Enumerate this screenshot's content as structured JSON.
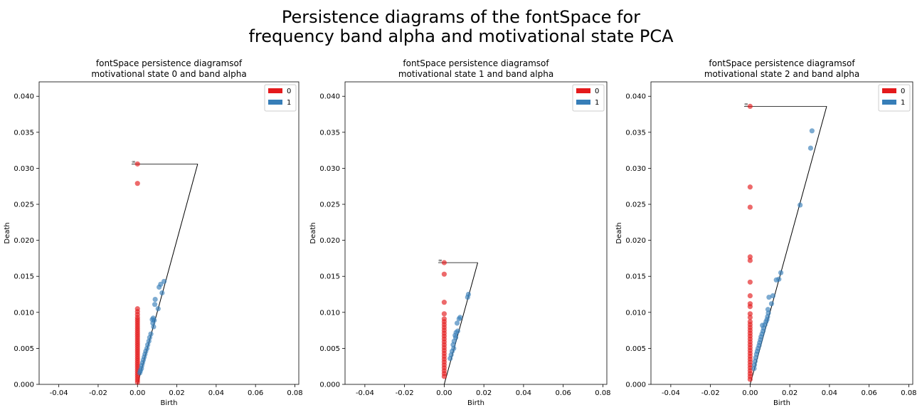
{
  "figure": {
    "title_line1": "Persistence diagrams of the fontSpace for",
    "title_line2": "frequency band alpha and motivational state PCA"
  },
  "chart_data": [
    {
      "type": "scatter",
      "title_line1": "fontSpace persistence diagramsof",
      "title_line2": "motivational state 0 and band alpha",
      "xlabel": "Birth",
      "ylabel": "Death",
      "xlim": [
        -0.05,
        0.082
      ],
      "ylim": [
        0,
        0.042
      ],
      "xticks": [
        "-0.04",
        "-0.02",
        "0.00",
        "0.02",
        "0.04",
        "0.06",
        "0.08"
      ],
      "yticks": [
        "0.000",
        "0.005",
        "0.010",
        "0.015",
        "0.020",
        "0.025",
        "0.030",
        "0.035",
        "0.040"
      ],
      "legend": {
        "position": "top-right",
        "entries": [
          {
            "label": "0",
            "color": "#e41a1c"
          },
          {
            "label": "1",
            "color": "#377eb8"
          }
        ]
      },
      "infinity_label": "∞",
      "infinity_level": 0.0306,
      "diagonal_max": 0.0306,
      "series": [
        {
          "name": "0",
          "color": "#e41a1c",
          "points": [
            [
              0,
              0.0306
            ],
            [
              0,
              0.0279
            ],
            [
              0,
              0.0105
            ],
            [
              0,
              0.0101
            ],
            [
              0,
              0.0097
            ],
            [
              0,
              0.0093
            ],
            [
              0,
              0.009
            ],
            [
              0,
              0.0087
            ],
            [
              0,
              0.0084
            ],
            [
              0,
              0.0081
            ],
            [
              0,
              0.0078
            ],
            [
              0,
              0.0075
            ],
            [
              0,
              0.0072
            ],
            [
              0,
              0.0069
            ],
            [
              0,
              0.0066
            ],
            [
              0,
              0.0063
            ],
            [
              0,
              0.006
            ],
            [
              0,
              0.0057
            ],
            [
              0,
              0.0054
            ],
            [
              0,
              0.0051
            ],
            [
              0,
              0.0048
            ],
            [
              0,
              0.0045
            ],
            [
              0,
              0.0042
            ],
            [
              0,
              0.0039
            ],
            [
              0,
              0.0036
            ],
            [
              0,
              0.0033
            ],
            [
              0,
              0.003
            ],
            [
              0,
              0.0027
            ],
            [
              0,
              0.0024
            ],
            [
              0,
              0.0021
            ],
            [
              0,
              0.0018
            ],
            [
              0,
              0.0015
            ],
            [
              0,
              0.0012
            ],
            [
              0,
              0.0009
            ],
            [
              0,
              0.0006
            ],
            [
              0,
              0.0003
            ]
          ]
        },
        {
          "name": "1",
          "color": "#377eb8",
          "points": [
            [
              0.0135,
              0.0143
            ],
            [
              0.0118,
              0.0139
            ],
            [
              0.011,
              0.0135
            ],
            [
              0.0125,
              0.0127
            ],
            [
              0.009,
              0.0118
            ],
            [
              0.0088,
              0.0111
            ],
            [
              0.0105,
              0.0105
            ],
            [
              0.008,
              0.0092
            ],
            [
              0.0075,
              0.009
            ],
            [
              0.0085,
              0.0089
            ],
            [
              0.0078,
              0.0085
            ],
            [
              0.0082,
              0.008
            ],
            [
              0.0068,
              0.007
            ],
            [
              0.0062,
              0.0065
            ],
            [
              0.0058,
              0.006
            ],
            [
              0.0052,
              0.0055
            ],
            [
              0.0048,
              0.005
            ],
            [
              0.0042,
              0.0046
            ],
            [
              0.0038,
              0.0042
            ],
            [
              0.0034,
              0.0038
            ],
            [
              0.003,
              0.0034
            ],
            [
              0.0026,
              0.003
            ],
            [
              0.0022,
              0.0026
            ],
            [
              0.002,
              0.0022
            ],
            [
              0.0015,
              0.0019
            ],
            [
              0.0012,
              0.0016
            ]
          ]
        }
      ]
    },
    {
      "type": "scatter",
      "title_line1": "fontSpace persistence diagramsof",
      "title_line2": "motivational state 1 and band alpha",
      "xlabel": "Birth",
      "ylabel": "Death",
      "xlim": [
        -0.05,
        0.082
      ],
      "ylim": [
        0,
        0.042
      ],
      "xticks": [
        "-0.04",
        "-0.02",
        "0.00",
        "0.02",
        "0.04",
        "0.06",
        "0.08"
      ],
      "yticks": [
        "0.000",
        "0.005",
        "0.010",
        "0.015",
        "0.020",
        "0.025",
        "0.030",
        "0.035",
        "0.040"
      ],
      "legend": {
        "position": "top-right",
        "entries": [
          {
            "label": "0",
            "color": "#e41a1c"
          },
          {
            "label": "1",
            "color": "#377eb8"
          }
        ]
      },
      "infinity_label": "∞",
      "infinity_level": 0.0169,
      "diagonal_max": 0.0169,
      "series": [
        {
          "name": "0",
          "color": "#e41a1c",
          "points": [
            [
              0,
              0.0169
            ],
            [
              0,
              0.0153
            ],
            [
              0,
              0.0114
            ],
            [
              0,
              0.0098
            ],
            [
              0,
              0.0091
            ],
            [
              0,
              0.0087
            ],
            [
              0,
              0.0083
            ],
            [
              0,
              0.0079
            ],
            [
              0,
              0.0075
            ],
            [
              0,
              0.0071
            ],
            [
              0,
              0.0067
            ],
            [
              0,
              0.0063
            ],
            [
              0,
              0.0059
            ],
            [
              0,
              0.0055
            ],
            [
              0,
              0.0051
            ],
            [
              0,
              0.0047
            ],
            [
              0,
              0.0043
            ],
            [
              0,
              0.0039
            ],
            [
              0,
              0.0035
            ],
            [
              0,
              0.0031
            ],
            [
              0,
              0.0027
            ],
            [
              0,
              0.0023
            ],
            [
              0,
              0.0019
            ],
            [
              0,
              0.0015
            ],
            [
              0,
              0.0011
            ]
          ]
        },
        {
          "name": "1",
          "color": "#377eb8",
          "points": [
            [
              0.0122,
              0.0125
            ],
            [
              0.0118,
              0.0121
            ],
            [
              0.008,
              0.0093
            ],
            [
              0.0075,
              0.0091
            ],
            [
              0.0065,
              0.0085
            ],
            [
              0.0068,
              0.0074
            ],
            [
              0.006,
              0.0072
            ],
            [
              0.0055,
              0.0068
            ],
            [
              0.0058,
              0.0065
            ],
            [
              0.005,
              0.006
            ],
            [
              0.0045,
              0.0055
            ],
            [
              0.0048,
              0.005
            ],
            [
              0.004,
              0.0046
            ],
            [
              0.0035,
              0.0041
            ],
            [
              0.003,
              0.0036
            ]
          ]
        }
      ]
    },
    {
      "type": "scatter",
      "title_line1": "fontSpace persistence diagramsof",
      "title_line2": "motivational state 2 and band alpha",
      "xlabel": "Birth",
      "ylabel": "Death",
      "xlim": [
        -0.05,
        0.082
      ],
      "ylim": [
        0,
        0.042
      ],
      "xticks": [
        "-0.04",
        "-0.02",
        "0.00",
        "0.02",
        "0.04",
        "0.06",
        "0.08"
      ],
      "yticks": [
        "0.000",
        "0.005",
        "0.010",
        "0.015",
        "0.020",
        "0.025",
        "0.030",
        "0.035",
        "0.040"
      ],
      "legend": {
        "position": "top-right",
        "entries": [
          {
            "label": "0",
            "color": "#e41a1c"
          },
          {
            "label": "1",
            "color": "#377eb8"
          }
        ]
      },
      "infinity_label": "∞",
      "infinity_level": 0.0386,
      "diagonal_max": 0.0386,
      "series": [
        {
          "name": "0",
          "color": "#e41a1c",
          "points": [
            [
              0,
              0.0386
            ],
            [
              0,
              0.0274
            ],
            [
              0,
              0.0246
            ],
            [
              0,
              0.0177
            ],
            [
              0,
              0.0172
            ],
            [
              0,
              0.0142
            ],
            [
              0,
              0.0123
            ],
            [
              0,
              0.0112
            ],
            [
              0,
              0.0108
            ],
            [
              0,
              0.0098
            ],
            [
              0,
              0.0093
            ],
            [
              0,
              0.0087
            ],
            [
              0,
              0.0083
            ],
            [
              0,
              0.0079
            ],
            [
              0,
              0.0075
            ],
            [
              0,
              0.0071
            ],
            [
              0,
              0.0067
            ],
            [
              0,
              0.0063
            ],
            [
              0,
              0.0059
            ],
            [
              0,
              0.0055
            ],
            [
              0,
              0.0051
            ],
            [
              0,
              0.0047
            ],
            [
              0,
              0.0043
            ],
            [
              0,
              0.0039
            ],
            [
              0,
              0.0035
            ],
            [
              0,
              0.0031
            ],
            [
              0,
              0.0027
            ],
            [
              0,
              0.0023
            ],
            [
              0,
              0.0019
            ],
            [
              0,
              0.0015
            ],
            [
              0,
              0.0011
            ],
            [
              0,
              0.0007
            ]
          ]
        },
        {
          "name": "1",
          "color": "#377eb8",
          "points": [
            [
              0.0312,
              0.0352
            ],
            [
              0.0305,
              0.0328
            ],
            [
              0.0252,
              0.0249
            ],
            [
              0.0155,
              0.0155
            ],
            [
              0.0145,
              0.0146
            ],
            [
              0.0132,
              0.0145
            ],
            [
              0.0115,
              0.0123
            ],
            [
              0.0095,
              0.0121
            ],
            [
              0.0108,
              0.0112
            ],
            [
              0.009,
              0.0104
            ],
            [
              0.0092,
              0.0099
            ],
            [
              0.0088,
              0.0094
            ],
            [
              0.0085,
              0.009
            ],
            [
              0.008,
              0.0087
            ],
            [
              0.0075,
              0.0083
            ],
            [
              0.0062,
              0.0082
            ],
            [
              0.0068,
              0.0078
            ],
            [
              0.0065,
              0.0074
            ],
            [
              0.006,
              0.007
            ],
            [
              0.0055,
              0.0066
            ],
            [
              0.0052,
              0.0062
            ],
            [
              0.0048,
              0.0058
            ],
            [
              0.0045,
              0.0054
            ],
            [
              0.004,
              0.005
            ],
            [
              0.0036,
              0.0046
            ],
            [
              0.0032,
              0.0042
            ],
            [
              0.0028,
              0.0037
            ],
            [
              0.0025,
              0.0032
            ],
            [
              0.0022,
              0.0027
            ],
            [
              0.002,
              0.0022
            ]
          ]
        }
      ]
    }
  ]
}
